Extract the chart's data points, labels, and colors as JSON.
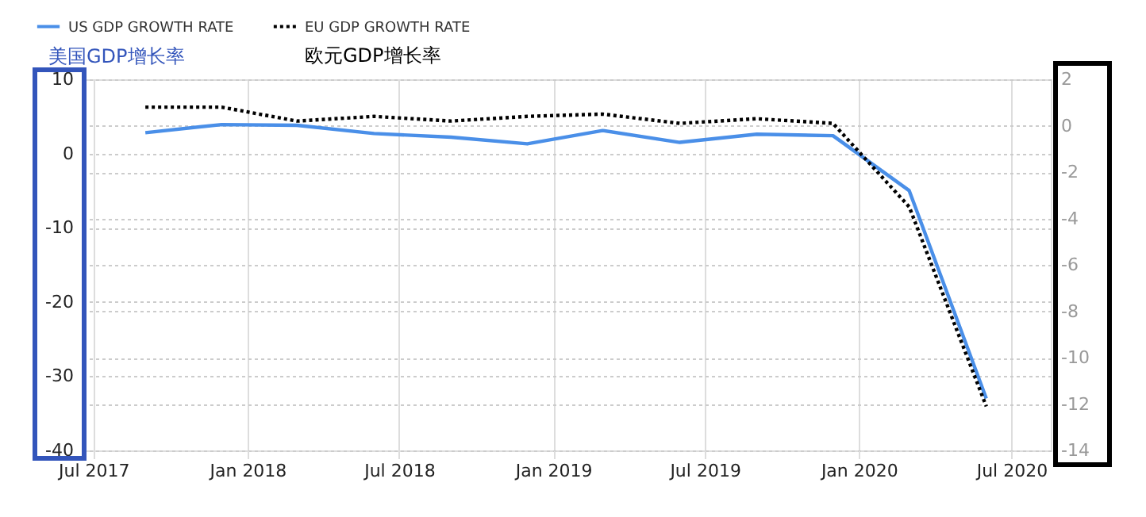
{
  "chart_data": {
    "type": "line",
    "ylabel": "美国GDP增长率",
    "annotations": [
      "欧元GDP增长率"
    ],
    "x": [
      "2017-09-01",
      "2017-12-01",
      "2018-03-01",
      "2018-06-01",
      "2018-09-01",
      "2018-12-01",
      "2019-03-01",
      "2019-06-01",
      "2019-09-01",
      "2019-12-01",
      "2020-03-01",
      "2020-06-01"
    ],
    "series": [
      {
        "name": "US GDP GROWTH RATE",
        "color": "#4a8fe8",
        "line_style": "solid",
        "values": [
          2.8,
          3.9,
          3.8,
          2.7,
          2.2,
          1.3,
          3.1,
          1.5,
          2.6,
          2.4,
          -5.0,
          -33.0
        ]
      },
      {
        "name": "EU GDP GROWTH RATE",
        "color": "#000000",
        "line_style": "dotted",
        "axis": "y2",
        "values": [
          0.8,
          0.8,
          0.2,
          0.4,
          0.2,
          0.4,
          0.5,
          0.1,
          0.3,
          0.1,
          -3.5,
          -12.1
        ]
      }
    ],
    "xlim": [
      "2017-06-18",
      "2020-08-17"
    ],
    "xticks": [
      {
        "value": "2017-07-01",
        "label": "Jul 2017"
      },
      {
        "value": "2018-01-01",
        "label": "Jan 2018"
      },
      {
        "value": "2018-07-01",
        "label": "Jul 2018"
      },
      {
        "value": "2019-01-01",
        "label": "Jan 2019"
      },
      {
        "value": "2019-07-01",
        "label": "Jul 2019"
      },
      {
        "value": "2020-01-01",
        "label": "Jan 2020"
      },
      {
        "value": "2020-07-01",
        "label": "Jul 2020"
      }
    ],
    "ylim": [
      -40,
      10
    ],
    "yticks": [
      -40,
      -30,
      -20,
      -10,
      0,
      10
    ],
    "y2lim": [
      -14,
      2
    ],
    "y2ticks": [
      -14,
      -12,
      -10,
      -8,
      -6,
      -4,
      -2,
      0,
      2
    ],
    "grid": true,
    "legend": "top left"
  }
}
